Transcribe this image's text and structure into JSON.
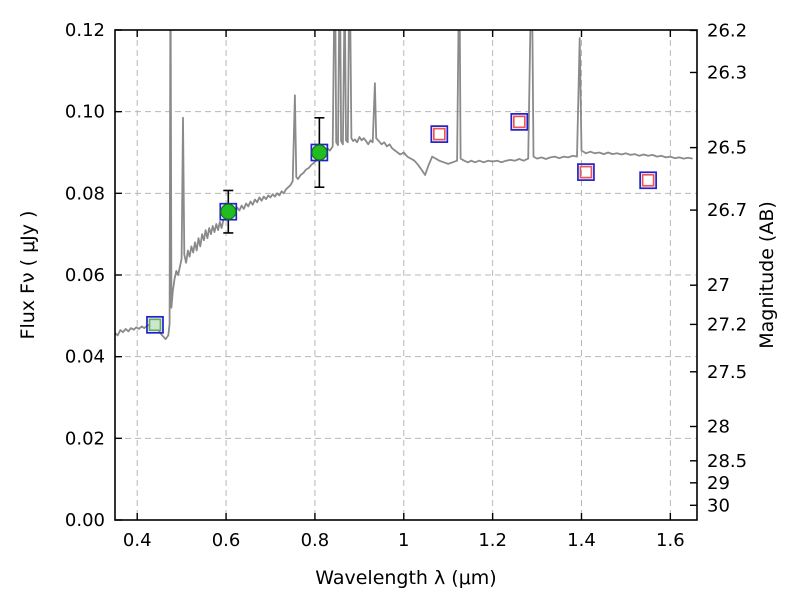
{
  "figure": {
    "background": "#ffffff",
    "frame_color": "#000000"
  },
  "chart_data": {
    "type": "line",
    "title": "",
    "xlabel": "Wavelength  λ (μm)",
    "ylabel_left": "Flux  Fν  ( μJy )",
    "ylabel_right": "Magnitude (AB)",
    "xlim": [
      0.35,
      1.66
    ],
    "ylim": [
      0.0,
      0.12
    ],
    "grid": {
      "show": true,
      "color": "#b8b8b8",
      "dash": "6,4",
      "width": 1
    },
    "xticks": {
      "values": [
        0.4,
        0.6,
        0.8,
        1.0,
        1.2,
        1.4,
        1.6
      ],
      "labels": [
        "0.4",
        "0.6",
        "0.8",
        "1",
        "1.2",
        "1.4",
        "1.6"
      ]
    },
    "yticks_left": {
      "values": [
        0.0,
        0.02,
        0.04,
        0.06,
        0.08,
        0.1,
        0.12
      ],
      "labels": [
        "0.00",
        "0.02",
        "0.04",
        "0.06",
        "0.08",
        "0.10",
        "0.12"
      ]
    },
    "yticks_right": [
      {
        "label": "26.2",
        "flux": 0.1199
      },
      {
        "label": "26.3",
        "flux": 0.1096
      },
      {
        "label": "26.5",
        "flux": 0.0912
      },
      {
        "label": "26.7",
        "flux": 0.0759
      },
      {
        "label": "27",
        "flux": 0.0575
      },
      {
        "label": "27.2",
        "flux": 0.0479
      },
      {
        "label": "27.5",
        "flux": 0.0363
      },
      {
        "label": "28",
        "flux": 0.0229
      },
      {
        "label": "28.5",
        "flux": 0.0145
      },
      {
        "label": "29",
        "flux": 0.0091
      },
      {
        "label": "30",
        "flux": 0.0036
      }
    ],
    "series": {
      "spectrum": {
        "name": "model spectrum",
        "color": "#8a8a8a",
        "width": 1.8,
        "points": [
          [
            0.35,
            0.0458
          ],
          [
            0.356,
            0.0452
          ],
          [
            0.362,
            0.0465
          ],
          [
            0.368,
            0.046
          ],
          [
            0.374,
            0.0468
          ],
          [
            0.38,
            0.0462
          ],
          [
            0.386,
            0.047
          ],
          [
            0.392,
            0.0466
          ],
          [
            0.398,
            0.0472
          ],
          [
            0.404,
            0.0468
          ],
          [
            0.41,
            0.0474
          ],
          [
            0.416,
            0.047
          ],
          [
            0.422,
            0.0476
          ],
          [
            0.428,
            0.0478
          ],
          [
            0.434,
            0.048
          ],
          [
            0.44,
            0.0476
          ],
          [
            0.446,
            0.0468
          ],
          [
            0.452,
            0.0458
          ],
          [
            0.458,
            0.045
          ],
          [
            0.464,
            0.0443
          ],
          [
            0.47,
            0.0452
          ],
          [
            0.473,
            0.048
          ],
          [
            0.475,
            0.14
          ],
          [
            0.477,
            0.052
          ],
          [
            0.48,
            0.056
          ],
          [
            0.484,
            0.059
          ],
          [
            0.488,
            0.061
          ],
          [
            0.492,
            0.06
          ],
          [
            0.496,
            0.062
          ],
          [
            0.5,
            0.064
          ],
          [
            0.503,
            0.0985
          ],
          [
            0.506,
            0.065
          ],
          [
            0.51,
            0.063
          ],
          [
            0.514,
            0.066
          ],
          [
            0.518,
            0.0645
          ],
          [
            0.522,
            0.067
          ],
          [
            0.526,
            0.0655
          ],
          [
            0.53,
            0.068
          ],
          [
            0.534,
            0.066
          ],
          [
            0.538,
            0.069
          ],
          [
            0.542,
            0.067
          ],
          [
            0.546,
            0.07
          ],
          [
            0.55,
            0.0685
          ],
          [
            0.554,
            0.071
          ],
          [
            0.558,
            0.069
          ],
          [
            0.562,
            0.0715
          ],
          [
            0.566,
            0.07
          ],
          [
            0.57,
            0.072
          ],
          [
            0.574,
            0.0705
          ],
          [
            0.578,
            0.0725
          ],
          [
            0.582,
            0.071
          ],
          [
            0.586,
            0.073
          ],
          [
            0.59,
            0.0715
          ],
          [
            0.594,
            0.0735
          ],
          [
            0.598,
            0.074
          ],
          [
            0.602,
            0.075
          ],
          [
            0.606,
            0.0755
          ],
          [
            0.61,
            0.0748
          ],
          [
            0.615,
            0.076
          ],
          [
            0.62,
            0.0752
          ],
          [
            0.625,
            0.0765
          ],
          [
            0.63,
            0.0758
          ],
          [
            0.635,
            0.077
          ],
          [
            0.64,
            0.0762
          ],
          [
            0.645,
            0.0775
          ],
          [
            0.65,
            0.0768
          ],
          [
            0.655,
            0.078
          ],
          [
            0.66,
            0.0772
          ],
          [
            0.665,
            0.0785
          ],
          [
            0.67,
            0.0778
          ],
          [
            0.675,
            0.079
          ],
          [
            0.68,
            0.0782
          ],
          [
            0.685,
            0.0792
          ],
          [
            0.69,
            0.0786
          ],
          [
            0.695,
            0.0795
          ],
          [
            0.7,
            0.079
          ],
          [
            0.705,
            0.0798
          ],
          [
            0.71,
            0.0792
          ],
          [
            0.715,
            0.08
          ],
          [
            0.72,
            0.0795
          ],
          [
            0.725,
            0.0805
          ],
          [
            0.73,
            0.08
          ],
          [
            0.735,
            0.081
          ],
          [
            0.74,
            0.0815
          ],
          [
            0.745,
            0.082
          ],
          [
            0.75,
            0.083
          ],
          [
            0.755,
            0.104
          ],
          [
            0.758,
            0.084
          ],
          [
            0.762,
            0.0835
          ],
          [
            0.768,
            0.0845
          ],
          [
            0.774,
            0.085
          ],
          [
            0.78,
            0.0858
          ],
          [
            0.786,
            0.0862
          ],
          [
            0.792,
            0.087
          ],
          [
            0.798,
            0.0875
          ],
          [
            0.804,
            0.0882
          ],
          [
            0.81,
            0.089
          ],
          [
            0.816,
            0.0895
          ],
          [
            0.822,
            0.09
          ],
          [
            0.828,
            0.091
          ],
          [
            0.834,
            0.0905
          ],
          [
            0.84,
            0.0915
          ],
          [
            0.845,
            0.14
          ],
          [
            0.848,
            0.0925
          ],
          [
            0.852,
            0.0918
          ],
          [
            0.856,
            0.14
          ],
          [
            0.859,
            0.0928
          ],
          [
            0.863,
            0.092
          ],
          [
            0.867,
            0.13
          ],
          [
            0.87,
            0.093
          ],
          [
            0.874,
            0.0925
          ],
          [
            0.878,
            0.14
          ],
          [
            0.882,
            0.0935
          ],
          [
            0.886,
            0.0928
          ],
          [
            0.89,
            0.0932
          ],
          [
            0.895,
            0.0925
          ],
          [
            0.9,
            0.0938
          ],
          [
            0.905,
            0.093
          ],
          [
            0.91,
            0.0935
          ],
          [
            0.915,
            0.0928
          ],
          [
            0.92,
            0.092
          ],
          [
            0.925,
            0.093
          ],
          [
            0.93,
            0.0925
          ],
          [
            0.935,
            0.107
          ],
          [
            0.938,
            0.0935
          ],
          [
            0.944,
            0.0928
          ],
          [
            0.95,
            0.092
          ],
          [
            0.956,
            0.0925
          ],
          [
            0.962,
            0.0915
          ],
          [
            0.968,
            0.092
          ],
          [
            0.974,
            0.091
          ],
          [
            0.98,
            0.0905
          ],
          [
            0.986,
            0.09
          ],
          [
            0.992,
            0.0895
          ],
          [
            1.0,
            0.09
          ],
          [
            1.008,
            0.089
          ],
          [
            1.016,
            0.0885
          ],
          [
            1.024,
            0.088
          ],
          [
            1.032,
            0.087
          ],
          [
            1.04,
            0.0858
          ],
          [
            1.048,
            0.0845
          ],
          [
            1.056,
            0.087
          ],
          [
            1.064,
            0.089
          ],
          [
            1.072,
            0.0885
          ],
          [
            1.08,
            0.088
          ],
          [
            1.09,
            0.0876
          ],
          [
            1.1,
            0.0872
          ],
          [
            1.11,
            0.0876
          ],
          [
            1.12,
            0.088
          ],
          [
            1.125,
            0.14
          ],
          [
            1.128,
            0.0885
          ],
          [
            1.136,
            0.088
          ],
          [
            1.144,
            0.0876
          ],
          [
            1.152,
            0.088
          ],
          [
            1.16,
            0.0876
          ],
          [
            1.17,
            0.088
          ],
          [
            1.18,
            0.0876
          ],
          [
            1.19,
            0.088
          ],
          [
            1.2,
            0.0878
          ],
          [
            1.21,
            0.088
          ],
          [
            1.22,
            0.0876
          ],
          [
            1.23,
            0.088
          ],
          [
            1.24,
            0.0882
          ],
          [
            1.25,
            0.088
          ],
          [
            1.26,
            0.0884
          ],
          [
            1.27,
            0.088
          ],
          [
            1.28,
            0.0885
          ],
          [
            1.288,
            0.14
          ],
          [
            1.292,
            0.089
          ],
          [
            1.3,
            0.0885
          ],
          [
            1.31,
            0.0888
          ],
          [
            1.32,
            0.0884
          ],
          [
            1.33,
            0.0888
          ],
          [
            1.34,
            0.089
          ],
          [
            1.35,
            0.0886
          ],
          [
            1.36,
            0.089
          ],
          [
            1.37,
            0.0888
          ],
          [
            1.38,
            0.0892
          ],
          [
            1.39,
            0.089
          ],
          [
            1.396,
            0.118
          ],
          [
            1.4,
            0.0905
          ],
          [
            1.41,
            0.0898
          ],
          [
            1.42,
            0.0902
          ],
          [
            1.43,
            0.0898
          ],
          [
            1.44,
            0.09
          ],
          [
            1.45,
            0.0896
          ],
          [
            1.46,
            0.09
          ],
          [
            1.47,
            0.0896
          ],
          [
            1.48,
            0.0898
          ],
          [
            1.49,
            0.0895
          ],
          [
            1.5,
            0.0898
          ],
          [
            1.51,
            0.0894
          ],
          [
            1.52,
            0.0896
          ],
          [
            1.53,
            0.0892
          ],
          [
            1.54,
            0.0895
          ],
          [
            1.55,
            0.0892
          ],
          [
            1.56,
            0.0894
          ],
          [
            1.57,
            0.089
          ],
          [
            1.58,
            0.0892
          ],
          [
            1.59,
            0.0888
          ],
          [
            1.6,
            0.089
          ],
          [
            1.61,
            0.0886
          ],
          [
            1.62,
            0.0888
          ],
          [
            1.63,
            0.0885
          ],
          [
            1.64,
            0.0887
          ],
          [
            1.65,
            0.0885
          ]
        ]
      },
      "observed_squares": {
        "name": "observed photometry (open blue squares)",
        "edge": "#2020cc",
        "size": 16,
        "points": [
          [
            0.44,
            0.0478
          ],
          [
            0.605,
            0.0755
          ],
          [
            0.81,
            0.09
          ],
          [
            1.08,
            0.0945
          ],
          [
            1.26,
            0.0975
          ],
          [
            1.41,
            0.0852
          ],
          [
            1.55,
            0.0832
          ]
        ]
      },
      "model_squares_red": {
        "name": "model photometry (open red squares)",
        "edge": "#ee5555",
        "size": 11,
        "points": [
          [
            1.08,
            0.0945
          ],
          [
            1.26,
            0.0975
          ],
          [
            1.41,
            0.0852
          ],
          [
            1.55,
            0.0832
          ]
        ]
      },
      "model_square_green": {
        "name": "model photometry (pale green square)",
        "edge": "#66aa66",
        "fill": "#cce8cc",
        "size": 11,
        "points": [
          [
            0.44,
            0.0478
          ]
        ]
      },
      "green_circles": {
        "name": "detected photometry (green circles with error bars)",
        "fill": "#22bb22",
        "edge": "#0e7a0e",
        "radius": 7.5,
        "errbar_color": "#000000",
        "points": [
          [
            0.605,
            0.0755
          ],
          [
            0.81,
            0.09
          ]
        ],
        "yerr": [
          0.0052,
          0.0085
        ]
      }
    }
  }
}
